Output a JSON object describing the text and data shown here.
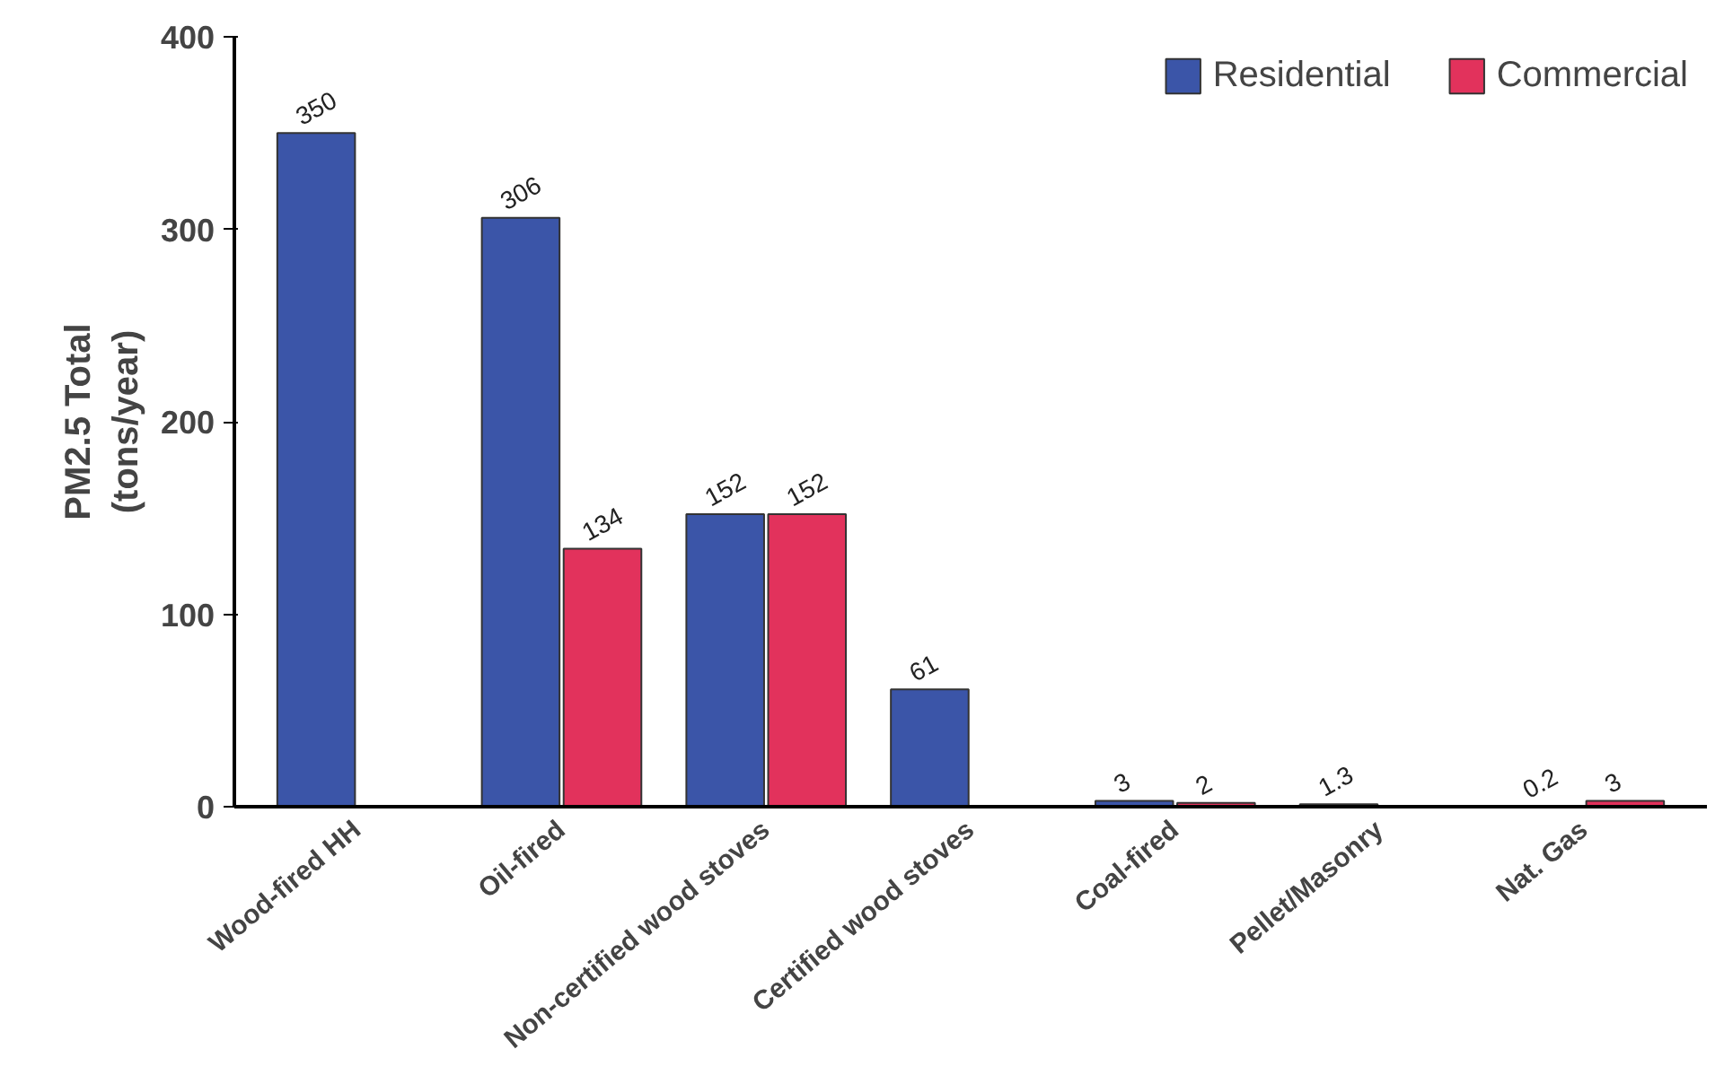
{
  "chart_data": {
    "type": "bar",
    "ylabel": "PM2.5 Total\n(tons/year)",
    "categories": [
      "Wood-fired HH",
      "Oil-fired",
      "Non-certified wood stoves",
      "Certified wood stoves",
      "Coal-fired",
      "Pellet/Masonry",
      "Nat. Gas"
    ],
    "series": [
      {
        "name": "Residential",
        "color": "#3b55a8",
        "values": [
          350,
          306,
          152,
          61,
          3,
          1.3,
          0.2
        ]
      },
      {
        "name": "Commercial",
        "color": "#e2325c",
        "values": [
          null,
          134,
          152,
          null,
          2,
          null,
          3
        ]
      }
    ],
    "ylim": [
      0,
      400
    ],
    "yticks": [
      0,
      100,
      200,
      300,
      400
    ],
    "data_labels": true,
    "legend": "top right",
    "grid": false
  }
}
